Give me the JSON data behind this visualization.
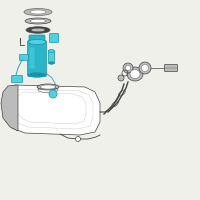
{
  "bg_color": "#f0f0eb",
  "line_color": "#444444",
  "highlight_color": "#2ab5c8",
  "highlight_color2": "#1a95a8",
  "highlight_color3": "#50d0e0",
  "gray_color": "#999999",
  "light_gray": "#bbbbbb",
  "dark_gray": "#666666",
  "white": "#ffffff"
}
